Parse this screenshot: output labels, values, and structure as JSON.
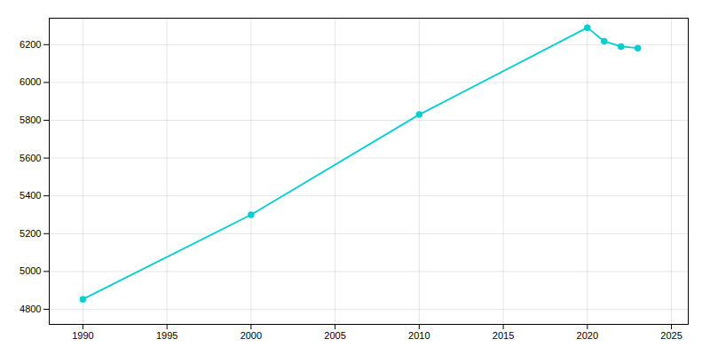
{
  "chart_data": {
    "type": "line",
    "x": [
      1990,
      2000,
      2010,
      2020,
      2021,
      2022,
      2023
    ],
    "values": [
      4853,
      5300,
      5830,
      6290,
      6218,
      6190,
      6182
    ],
    "color": "#00CED1",
    "marker": "circle",
    "xlim": [
      1988,
      2026
    ],
    "ylim": [
      4720,
      6340
    ],
    "xticks": [
      1990,
      1995,
      2000,
      2005,
      2010,
      2015,
      2020,
      2025
    ],
    "yticks": [
      4800,
      5000,
      5200,
      5400,
      5600,
      5800,
      6000,
      6200
    ],
    "grid": true
  }
}
